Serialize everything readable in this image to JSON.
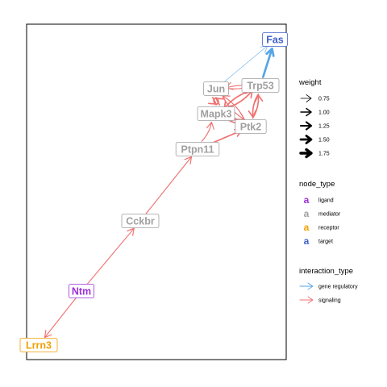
{
  "colors": {
    "ligand": "#9b30d9",
    "mediator": "#a0a0a0",
    "receptor": "#f0a000",
    "target": "#4060c8",
    "gene_regulatory": "#56a5e8",
    "signaling": "#f07070"
  },
  "nodes": [
    {
      "id": "Fas",
      "label": "Fas",
      "type": "target"
    },
    {
      "id": "Jun",
      "label": "Jun",
      "type": "mediator"
    },
    {
      "id": "Trp53",
      "label": "Trp53",
      "type": "mediator"
    },
    {
      "id": "Mapk3",
      "label": "Mapk3",
      "type": "mediator"
    },
    {
      "id": "Ptk2",
      "label": "Ptk2",
      "type": "mediator"
    },
    {
      "id": "Ptpn11",
      "label": "Ptpn11",
      "type": "mediator"
    },
    {
      "id": "Cckbr",
      "label": "Cckbr",
      "type": "mediator"
    },
    {
      "id": "Ntm",
      "label": "Ntm",
      "type": "ligand"
    },
    {
      "id": "Lrrn3",
      "label": "Lrrn3",
      "type": "receptor"
    }
  ],
  "edges": [
    {
      "from": "Jun",
      "to": "Fas",
      "type": "gene_regulatory",
      "weight": 0.75
    },
    {
      "from": "Trp53",
      "to": "Fas",
      "type": "gene_regulatory",
      "weight": 1.75
    },
    {
      "from": "Ntm",
      "to": "Lrrn3",
      "type": "signaling",
      "weight": 1.0
    },
    {
      "from": "Ntm",
      "to": "Cckbr",
      "type": "signaling",
      "weight": 1.0
    },
    {
      "from": "Cckbr",
      "to": "Ptpn11",
      "type": "signaling",
      "weight": 1.0
    },
    {
      "from": "Ptpn11",
      "to": "Ptk2",
      "type": "signaling",
      "weight": 1.25
    },
    {
      "from": "Ptpn11",
      "to": "Mapk3",
      "type": "signaling",
      "weight": 1.0
    },
    {
      "from": "Mapk3",
      "to": "Jun",
      "type": "signaling",
      "weight": 1.25
    },
    {
      "from": "Jun",
      "to": "Mapk3",
      "type": "signaling",
      "weight": 1.25
    },
    {
      "from": "Mapk3",
      "to": "Trp53",
      "type": "signaling",
      "weight": 1.25
    },
    {
      "from": "Trp53",
      "to": "Mapk3",
      "type": "signaling",
      "weight": 1.25
    },
    {
      "from": "Mapk3",
      "to": "Ptk2",
      "type": "signaling",
      "weight": 1.25
    },
    {
      "from": "Ptk2",
      "to": "Mapk3",
      "type": "signaling",
      "weight": 1.25
    },
    {
      "from": "Ptk2",
      "to": "Trp53",
      "type": "signaling",
      "weight": 1.25
    },
    {
      "from": "Trp53",
      "to": "Ptk2",
      "type": "signaling",
      "weight": 1.25
    },
    {
      "from": "Jun",
      "to": "Trp53",
      "type": "signaling",
      "weight": 1.0
    },
    {
      "from": "Trp53",
      "to": "Jun",
      "type": "signaling",
      "weight": 1.0
    },
    {
      "from": "Jun",
      "to": "Ptk2",
      "type": "signaling",
      "weight": 1.0
    },
    {
      "from": "Ptk2",
      "to": "Jun",
      "type": "signaling",
      "weight": 1.0
    }
  ],
  "legend": {
    "weight": {
      "title": "weight",
      "items": [
        {
          "label": "0.75",
          "value": 0.75
        },
        {
          "label": "1.00",
          "value": 1.0
        },
        {
          "label": "1.25",
          "value": 1.25
        },
        {
          "label": "1.50",
          "value": 1.5
        },
        {
          "label": "1.75",
          "value": 1.75
        }
      ]
    },
    "node_type": {
      "title": "node_type",
      "glyph": "a",
      "items": [
        {
          "label": "ligand",
          "key": "ligand"
        },
        {
          "label": "mediator",
          "key": "mediator"
        },
        {
          "label": "receptor",
          "key": "receptor"
        },
        {
          "label": "target",
          "key": "target"
        }
      ]
    },
    "interaction_type": {
      "title": "interaction_type",
      "items": [
        {
          "label": "gene regulatory",
          "key": "gene_regulatory"
        },
        {
          "label": "signaling",
          "key": "signaling"
        }
      ]
    }
  }
}
